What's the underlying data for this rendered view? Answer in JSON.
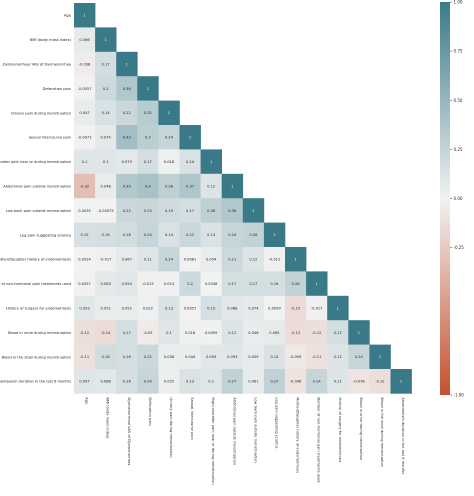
{
  "chart_data": {
    "type": "heatmap",
    "variables": [
      "Age",
      "BMI (body mass index)",
      "Dysmenorrhea/ VAS of Dysmenorrhea",
      "Defecation pain",
      "Urinary pain during menstruation",
      "Sexual intercourse pain",
      "Right shoulder pain near or during menstruation",
      "Abdominal pain outside menstruation",
      "Low back pain outside menstruation",
      "Leg pain suggesting sciatica",
      "Mother/Daughter history of endometriosis",
      "Number of non-hormonal pain treatments used",
      "History of surgery for endometriosis",
      "Blood in urine during menstruation",
      "Blood in the stool during menstruation",
      "Absenteeism duration in the last 6 months"
    ],
    "matrix": [
      [
        "1"
      ],
      [
        "0.066",
        "1"
      ],
      [
        "-0.038",
        "0.17",
        "1"
      ],
      [
        "-0.0057",
        "0.2",
        "0.36",
        "1"
      ],
      [
        "0.047",
        "0.14",
        "0.22",
        "0.32",
        "1"
      ],
      [
        "-0.0073",
        "0.074",
        "0.43",
        "0.3",
        "0.24",
        "1"
      ],
      [
        "0.1",
        "0.1",
        "0.079",
        "0.17",
        "0.018",
        "0.14",
        "1"
      ],
      [
        "-0.32",
        "0.048",
        "0.35",
        "0.4",
        "0.28",
        "0.37",
        "0.12",
        "1"
      ],
      [
        "0.0035",
        "-0.00075",
        "0.22",
        "0.23",
        "0.19",
        "0.17",
        "0.28",
        "0.36",
        "1"
      ],
      [
        "0.15",
        "0.16",
        "0.18",
        "0.24",
        "0.14",
        "0.22",
        "0.13",
        "0.24",
        "0.26",
        "1"
      ],
      [
        "0.0024",
        "-0.017",
        "0.067",
        "0.11",
        "0.24",
        "0.0081",
        "0.054",
        "0.21",
        "0.12",
        "-0.012",
        "1"
      ],
      [
        "0.0057",
        "0.083",
        "0.094",
        "-0.015",
        "0.014",
        "0.2",
        "0.0036",
        "0.17",
        "0.17",
        "0.16",
        "0.26",
        "1"
      ],
      [
        "0.093",
        "0.051",
        "0.052",
        "0.022",
        "0.13",
        "0.0057",
        "0.15",
        "0.088",
        "0.074",
        "0.0099",
        "-0.15",
        "-0.017",
        "1"
      ],
      [
        "-0.12",
        "-0.14",
        "0.17",
        "-0.05",
        "0.1",
        "0.018",
        "0.0099",
        "0.12",
        "0.048",
        "0.065",
        "-0.13",
        "-0.12",
        "0.17",
        "1"
      ],
      [
        "-0.11",
        "0.18",
        "0.16",
        "0.22",
        "0.036",
        "0.044",
        "0.093",
        "0.093",
        "0.059",
        "0.13",
        "-0.059",
        "-0.11",
        "0.12",
        "0.24",
        "1"
      ],
      [
        "0.097",
        "0.088",
        "0.16",
        "0.24",
        "0.025",
        "0.13",
        "0.1",
        "0.27",
        "0.061",
        "0.27",
        "-0.096",
        "0.24",
        "0.11",
        "-0.078",
        "-0.12",
        "1"
      ]
    ],
    "color_scale": {
      "min": -1.0,
      "max": 1.0,
      "negative_color": "#c4512f",
      "center_color": "#f2f2f2",
      "positive_color": "#3a7a88",
      "ticks": [
        {
          "value": 1.0,
          "label": "1.00"
        },
        {
          "value": 0.75,
          "label": "0.75"
        },
        {
          "value": 0.5,
          "label": "0.50"
        },
        {
          "value": 0.25,
          "label": "0.25"
        },
        {
          "value": 0.0,
          "label": "0.00"
        },
        {
          "value": -0.25,
          "label": "-0.25"
        },
        {
          "value": -1.0,
          "label": "-1.00"
        }
      ]
    },
    "lower_triangle_only": true,
    "legend": "colorbar-right"
  }
}
